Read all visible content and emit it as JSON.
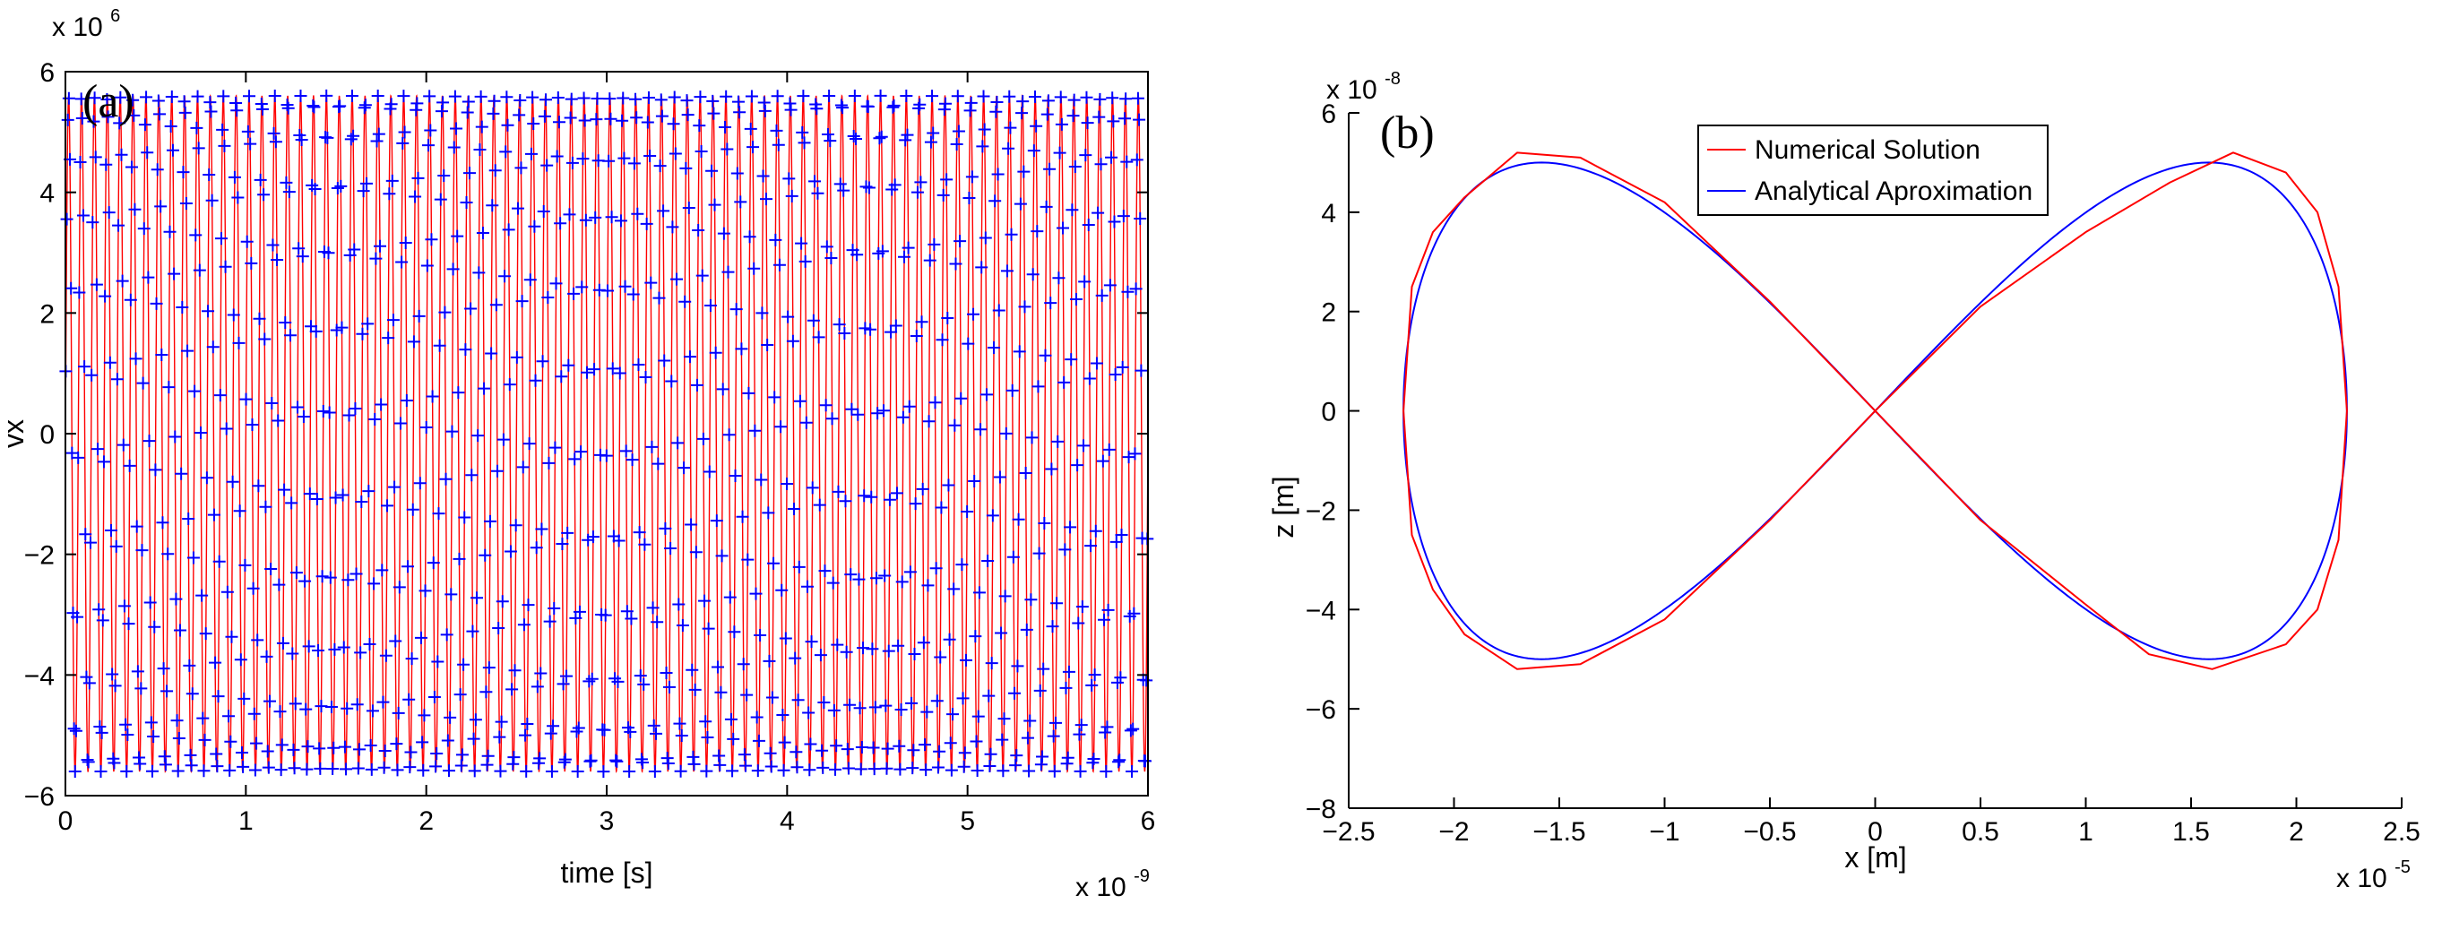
{
  "chart_data": [
    {
      "panel": "(a)",
      "type": "line",
      "xlabel": "time [s]",
      "ylabel": "vx",
      "x_exponent_label": "x 10",
      "x_exponent": "-9",
      "y_exponent_label": "x 10",
      "y_exponent": "6",
      "xlim": [
        0,
        6
      ],
      "ylim": [
        -6,
        6
      ],
      "xticks": [
        "0",
        "1",
        "2",
        "3",
        "4",
        "5",
        "6"
      ],
      "yticks": [
        "-6",
        "-4",
        "-2",
        "0",
        "2",
        "4",
        "6"
      ],
      "grid": false,
      "series": [
        {
          "style": "line",
          "color": "#ff0000",
          "model": "amplitude 5.6e6 m/s, frequency 1.4e10 Hz, sampled from t = 0 to 6e-9 s"
        },
        {
          "style": "plus-markers",
          "color": "#0000ff",
          "model": "same signal as the red line, shown as '+' markers"
        }
      ]
    },
    {
      "panel": "(b)",
      "type": "line",
      "xlabel": "x [m]",
      "ylabel": "z [m]",
      "x_exponent_label": "x 10",
      "x_exponent": "-5",
      "y_exponent_label": "x 10",
      "y_exponent": "-8",
      "xlim": [
        -2.5,
        2.5
      ],
      "ylim": [
        -8,
        6
      ],
      "xticks": [
        "-2.5",
        "-2",
        "-1.5",
        "-1",
        "-0.5",
        "0",
        "0.5",
        "1",
        "1.5",
        "2",
        "2.5"
      ],
      "yticks": [
        "-8",
        "-6",
        "-4",
        "-2",
        "0",
        "2",
        "4",
        "6"
      ],
      "grid": false,
      "legend": "top-right",
      "series": [
        {
          "name": "Numerical Solution",
          "color": "#ff0000",
          "x": [
            0,
            0.5,
            1.0,
            1.4,
            1.7,
            1.95,
            2.1,
            2.2,
            2.24,
            2.2,
            2.1,
            1.95,
            1.6,
            1.3,
            1.0,
            0.5,
            0,
            -0.5,
            -1.0,
            -1.4,
            -1.7,
            -1.95,
            -2.1,
            -2.2,
            -2.24,
            -2.2,
            -2.1,
            -1.95,
            -1.7,
            -1.4,
            -1.0,
            -0.5,
            0
          ],
          "z": [
            0,
            2.1,
            3.6,
            4.6,
            5.2,
            4.8,
            4.0,
            2.5,
            0,
            -2.6,
            -4.0,
            -4.7,
            -5.2,
            -4.9,
            -3.9,
            -2.2,
            0,
            2.2,
            4.2,
            5.1,
            5.2,
            4.3,
            3.6,
            2.5,
            0,
            -2.5,
            -3.6,
            -4.5,
            -5.2,
            -5.1,
            -4.2,
            -2.2,
            0
          ]
        },
        {
          "name": "Analytical Aproximation",
          "color": "#0000ff",
          "model": "x = 2.24e-5 sin(t), z = 5.0e-8 sin(2t) for t in [0, 2*pi]"
        }
      ]
    }
  ]
}
